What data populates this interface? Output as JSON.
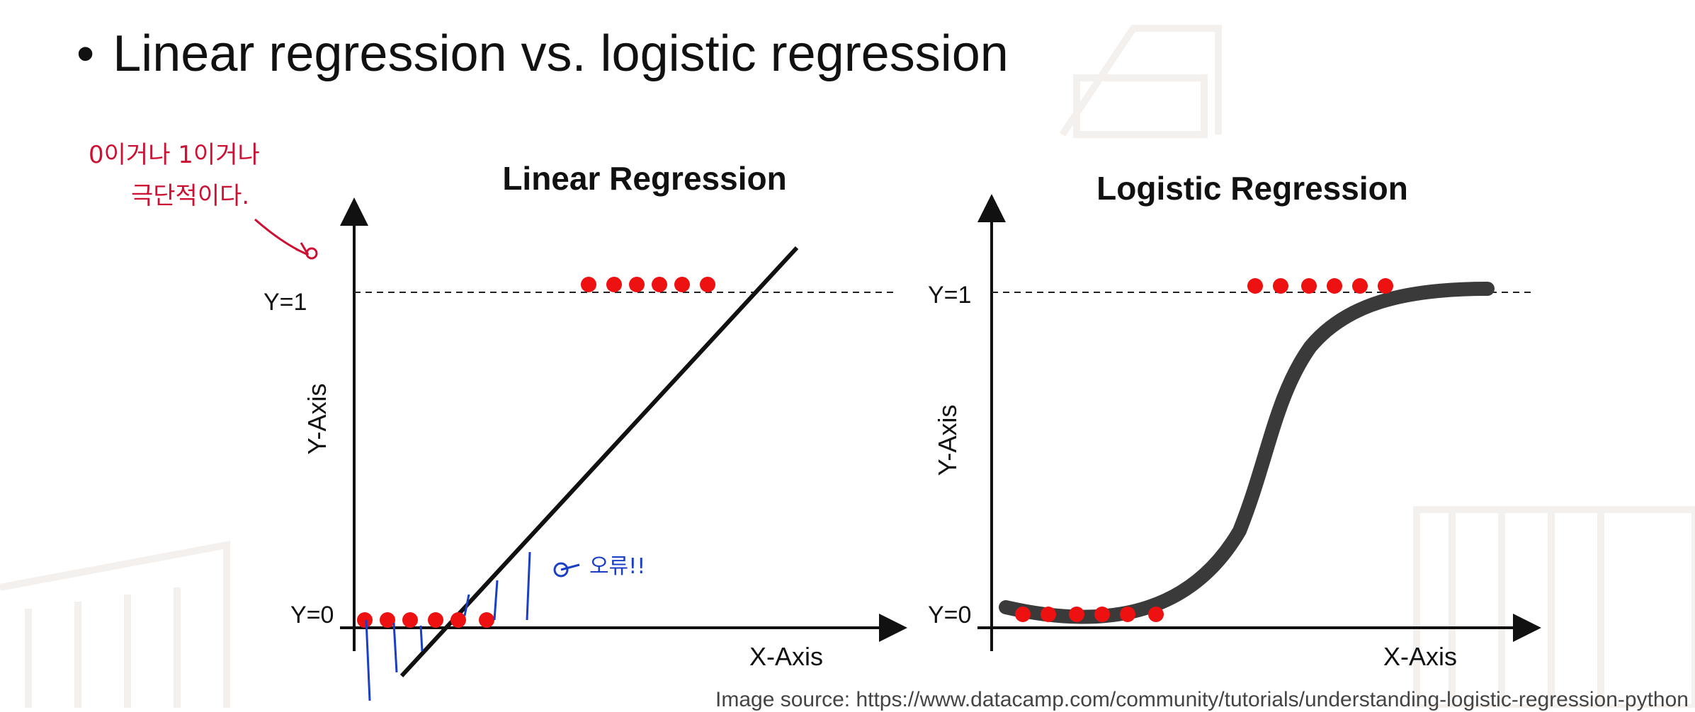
{
  "slide": {
    "bullet": "•",
    "title": "Linear regression vs. logistic regression"
  },
  "chart_data": [
    {
      "type": "scatter",
      "title": "Linear Regression",
      "xlabel": "X-Axis",
      "ylabel": "Y-Axis",
      "y_tick_labels": [
        "Y=0",
        "Y=1"
      ],
      "points": [
        {
          "x": 0.0,
          "y": 0
        },
        {
          "x": 0.8,
          "y": 0
        },
        {
          "x": 1.6,
          "y": 0
        },
        {
          "x": 2.5,
          "y": 0
        },
        {
          "x": 3.3,
          "y": 0
        },
        {
          "x": 4.3,
          "y": 0
        },
        {
          "x": 7.9,
          "y": 1
        },
        {
          "x": 8.8,
          "y": 1
        },
        {
          "x": 9.6,
          "y": 1
        },
        {
          "x": 10.4,
          "y": 1
        },
        {
          "x": 11.2,
          "y": 1
        },
        {
          "x": 12.1,
          "y": 1
        }
      ],
      "fit": "linear"
    },
    {
      "type": "scatter",
      "title": "Logistic Regression",
      "xlabel": "X-Axis",
      "ylabel": "Y-Axis",
      "y_tick_labels": [
        "Y=0",
        "Y=1"
      ],
      "points": [
        {
          "x": 0.6,
          "y": 0
        },
        {
          "x": 1.5,
          "y": 0
        },
        {
          "x": 2.5,
          "y": 0
        },
        {
          "x": 3.4,
          "y": 0
        },
        {
          "x": 4.3,
          "y": 0
        },
        {
          "x": 5.3,
          "y": 0
        },
        {
          "x": 8.8,
          "y": 1
        },
        {
          "x": 9.7,
          "y": 1
        },
        {
          "x": 10.7,
          "y": 1
        },
        {
          "x": 11.6,
          "y": 1
        },
        {
          "x": 12.5,
          "y": 1
        },
        {
          "x": 13.4,
          "y": 1
        }
      ],
      "fit": "sigmoid"
    }
  ],
  "annotations": {
    "red_note_line1": "0이거나 1이거나",
    "red_note_line2": "극단적이다.",
    "blue_note": "오류!!"
  },
  "credit": {
    "label": "Image source:",
    "url": "https://www.datacamp.com/community/tutorials/understanding-logistic-regression-python"
  },
  "colors": {
    "points": "#ee1111",
    "annotation_red": "#cc1133",
    "annotation_blue": "#1a3fc4",
    "curve": "#3a3a3a",
    "text": "#111111"
  }
}
